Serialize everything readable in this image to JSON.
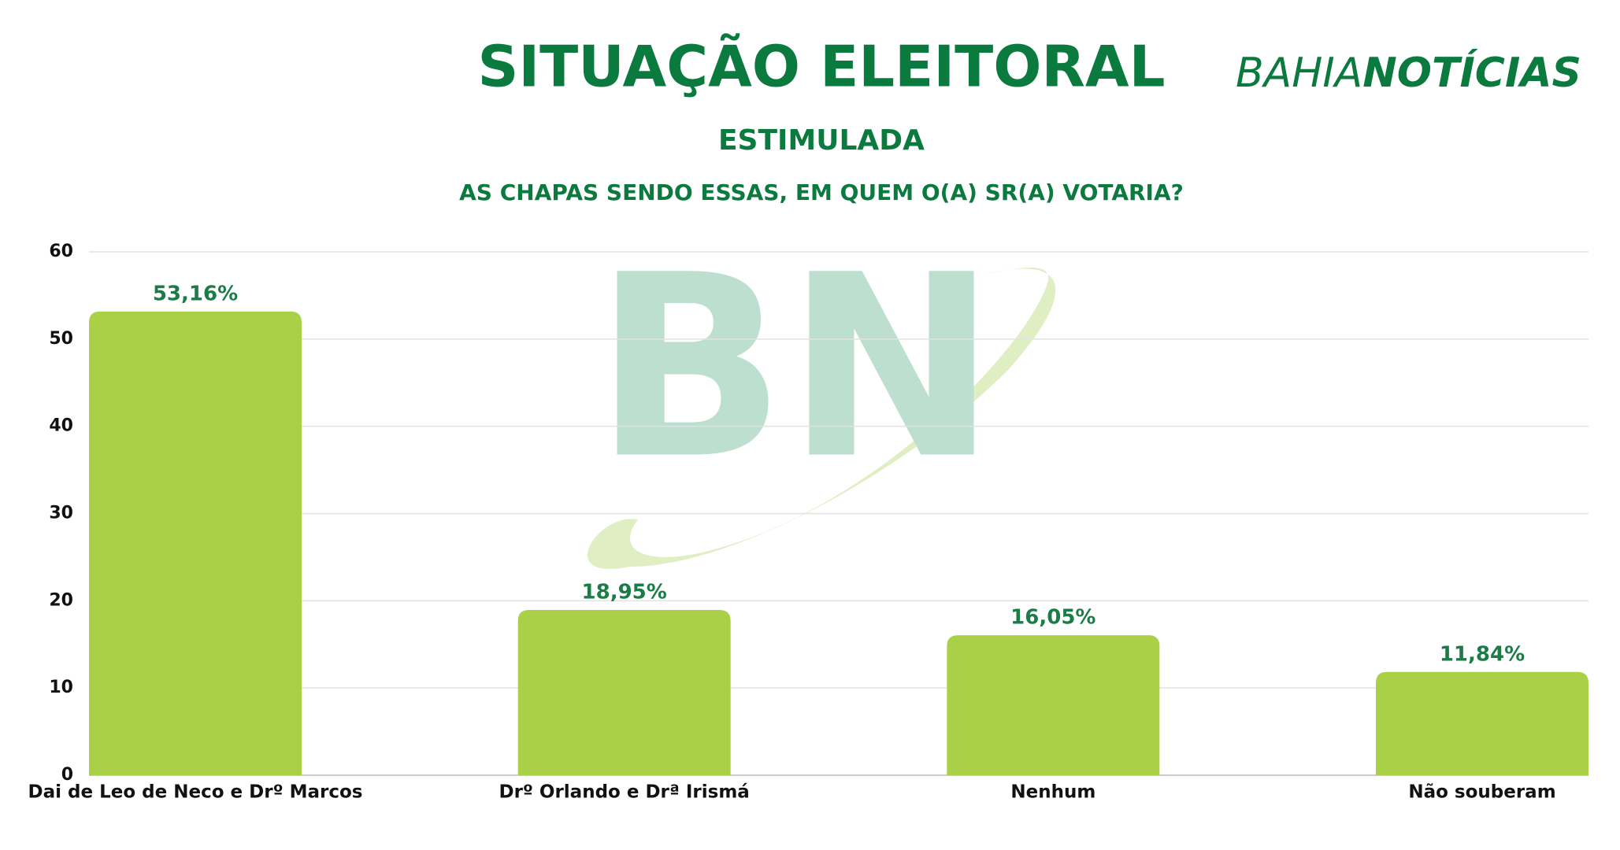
{
  "chart_data": {
    "type": "bar",
    "title": "SITUAÇÃO ELEITORAL",
    "subtitle": "ESTIMULADA",
    "question": "AS CHAPAS SENDO ESSAS, EM QUEM O(A) SR(A) VOTARIA?",
    "brand": [
      "BAHIA",
      "NOTÍCIAS"
    ],
    "watermark": "BN",
    "categories": [
      "Dai de Leo de Neco e Drº Marcos",
      "Drº Orlando e Drª Irismá",
      "Nenhum",
      "Não souberam"
    ],
    "values": [
      53.16,
      18.95,
      16.05,
      11.84
    ],
    "value_labels": [
      "53,16%",
      "18,95%",
      "16,05%",
      "11,84%"
    ],
    "color": "#a9d046",
    "ylim": [
      0,
      60
    ],
    "yticks": [
      0,
      10,
      20,
      30,
      40,
      50,
      60
    ],
    "grid": true
  }
}
